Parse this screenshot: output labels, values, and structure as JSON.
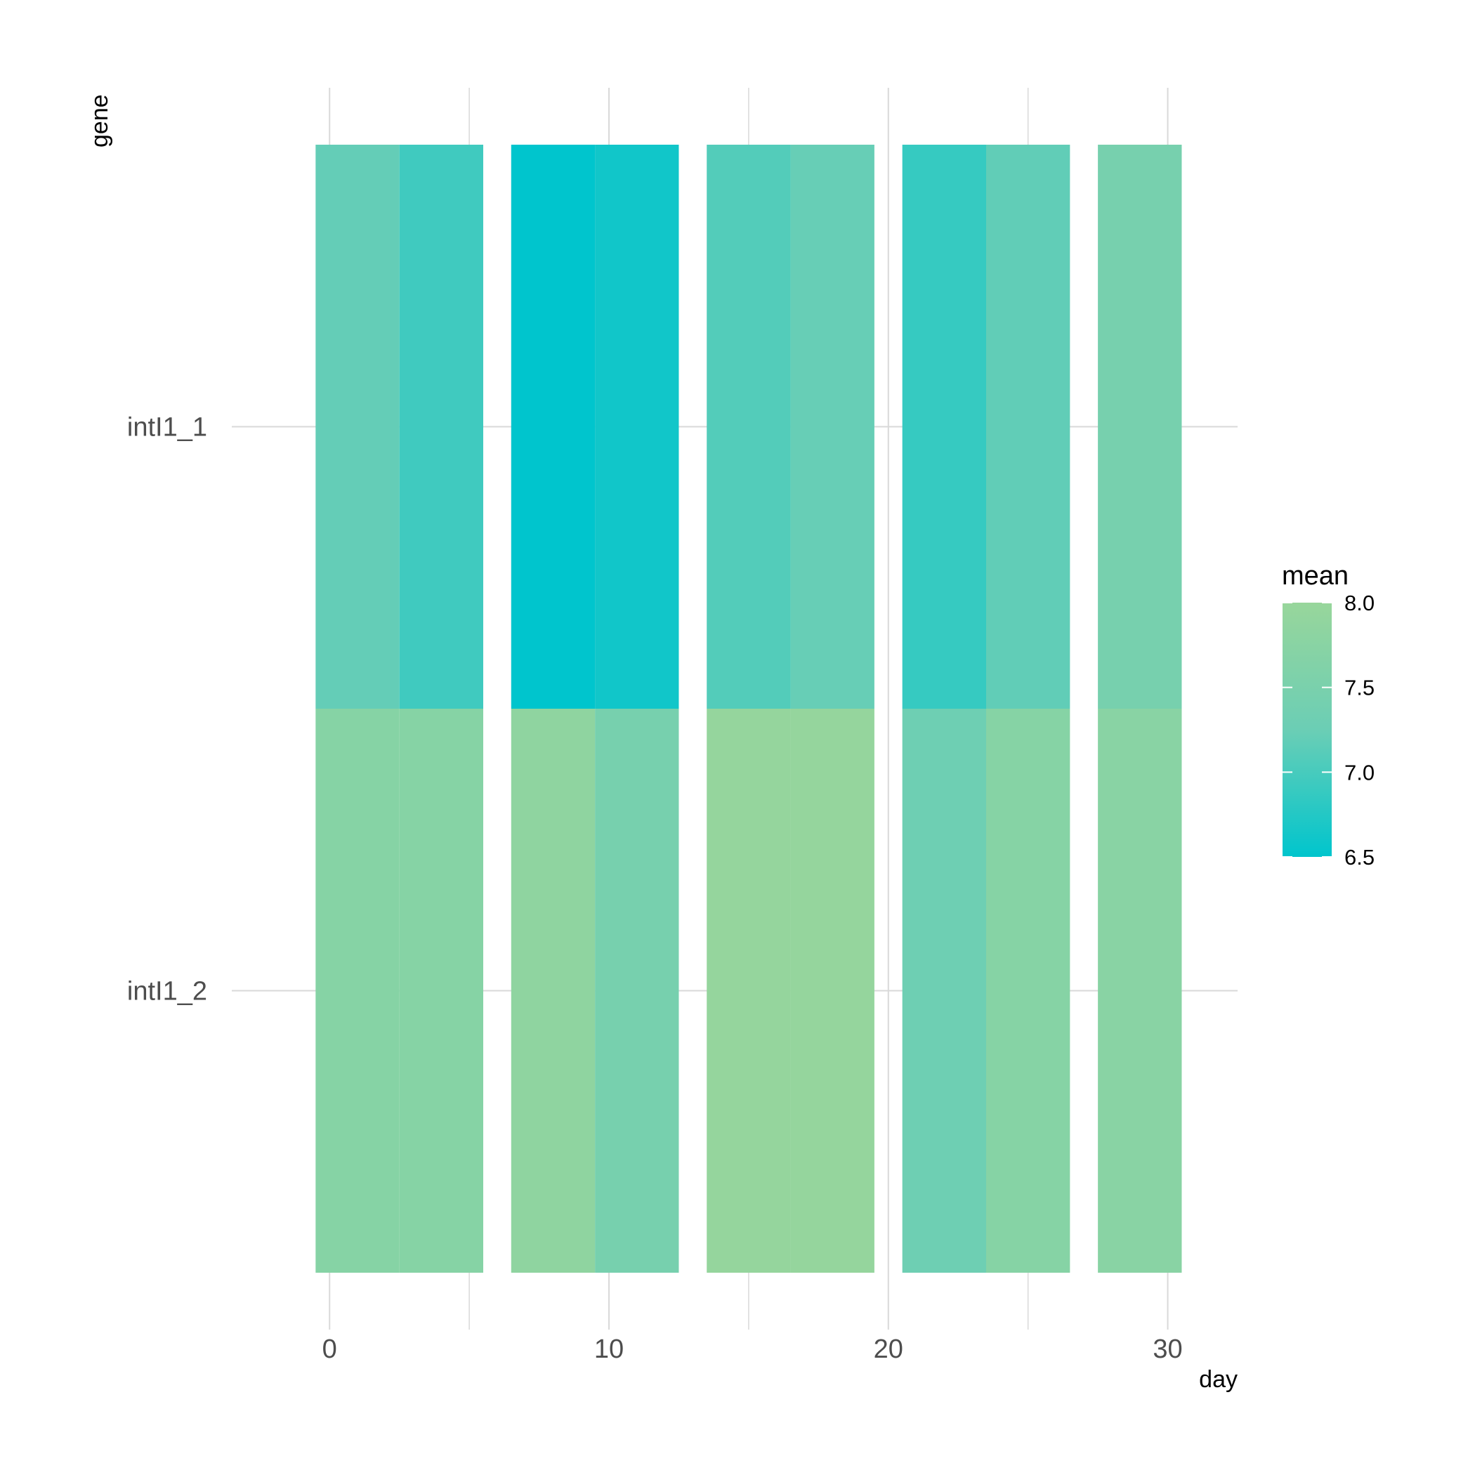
{
  "chart_data": {
    "type": "heatmap",
    "xlabel": "day",
    "ylabel": "gene",
    "x_ticks": [
      0,
      10,
      20,
      30
    ],
    "xlim": [
      -3.5,
      32.5
    ],
    "genes": [
      "intI1_1",
      "intI1_2"
    ],
    "cells": [
      {
        "day": 1,
        "gene": "intI1_1",
        "value": 7.2
      },
      {
        "day": 4,
        "gene": "intI1_1",
        "value": 6.95
      },
      {
        "day": 8,
        "gene": "intI1_1",
        "value": 6.5
      },
      {
        "day": 11,
        "gene": "intI1_1",
        "value": 6.62
      },
      {
        "day": 15,
        "gene": "intI1_1",
        "value": 7.08
      },
      {
        "day": 18,
        "gene": "intI1_1",
        "value": 7.22
      },
      {
        "day": 22,
        "gene": "intI1_1",
        "value": 6.88
      },
      {
        "day": 25,
        "gene": "intI1_1",
        "value": 7.18
      },
      {
        "day": 29,
        "gene": "intI1_1",
        "value": 7.45
      },
      {
        "day": 1,
        "gene": "intI1_2",
        "value": 7.7
      },
      {
        "day": 4,
        "gene": "intI1_2",
        "value": 7.7
      },
      {
        "day": 8,
        "gene": "intI1_2",
        "value": 7.85
      },
      {
        "day": 11,
        "gene": "intI1_2",
        "value": 7.45
      },
      {
        "day": 15,
        "gene": "intI1_2",
        "value": 7.95
      },
      {
        "day": 18,
        "gene": "intI1_2",
        "value": 7.95
      },
      {
        "day": 22,
        "gene": "intI1_2",
        "value": 7.3
      },
      {
        "day": 25,
        "gene": "intI1_2",
        "value": 7.7
      },
      {
        "day": 29,
        "gene": "intI1_2",
        "value": 7.75
      }
    ],
    "legend": {
      "title": "mean",
      "min": 6.5,
      "max": 8.0,
      "ticks": [
        "8.0",
        "7.5",
        "7.0",
        "6.5"
      ],
      "placement": "right"
    },
    "colors": {
      "low": "#00c5cd",
      "mid": "#6bceb5",
      "high": "#98d69b",
      "grid": "#d9d9d9"
    },
    "grid": true
  }
}
